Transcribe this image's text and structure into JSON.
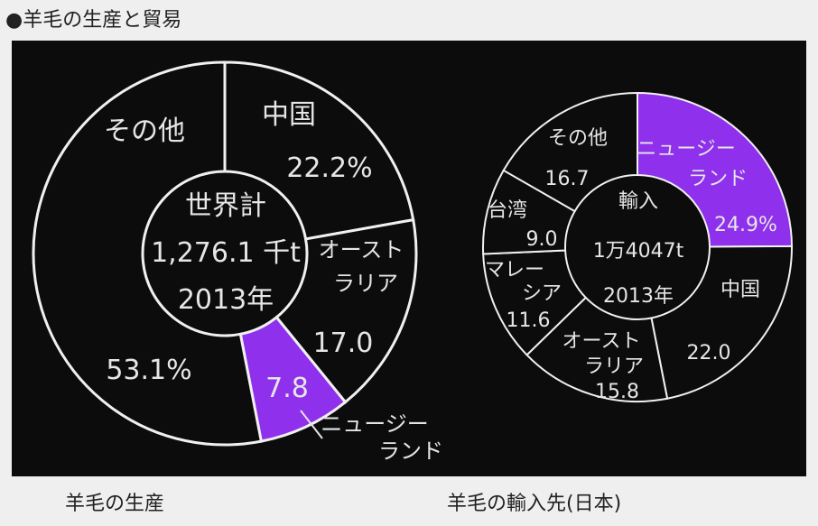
{
  "title": "●羊毛の生産と貿易",
  "colors": {
    "background": "#0c0c0c",
    "highlight": "#8f30ec",
    "line": "#f0f0f0"
  },
  "chart_data": [
    {
      "type": "pie",
      "donut": true,
      "caption": "羊毛の生産",
      "center": {
        "line1": "世界計",
        "line2": "1,276.1 千t",
        "line3": "2013年"
      },
      "slices": [
        {
          "label": "中国",
          "value": 22.2,
          "value_label": "22.2%",
          "highlight": false
        },
        {
          "label_lines": [
            "オースト",
            "ラリア"
          ],
          "value": 17.0,
          "value_label": "17.0",
          "highlight": false
        },
        {
          "label_lines": [
            "ニュージー",
            "ランド"
          ],
          "value": 7.8,
          "value_label": "7.8",
          "highlight": true
        },
        {
          "label": "その他",
          "value": 53.1,
          "value_label": "53.1%",
          "highlight": false
        }
      ]
    },
    {
      "type": "pie",
      "donut": true,
      "caption": "羊毛の輸入先(日本)",
      "center": {
        "line1": "輸入",
        "line2": "1万4047t",
        "line3": "2013年"
      },
      "slices": [
        {
          "label_lines": [
            "ニュージー",
            "ランド"
          ],
          "value": 24.9,
          "value_label": "24.9%",
          "highlight": true
        },
        {
          "label": "中国",
          "value": 22.0,
          "value_label": "22.0",
          "highlight": false
        },
        {
          "label_lines": [
            "オースト",
            "ラリア"
          ],
          "value": 15.8,
          "value_label": "15.8",
          "highlight": false
        },
        {
          "label_lines": [
            "マレー",
            "シア"
          ],
          "value": 11.6,
          "value_label": "11.6",
          "highlight": false
        },
        {
          "label": "台湾",
          "value": 9.0,
          "value_label": "9.0",
          "highlight": false
        },
        {
          "label": "その他",
          "value": 16.7,
          "value_label": "16.7",
          "highlight": false
        }
      ]
    }
  ]
}
